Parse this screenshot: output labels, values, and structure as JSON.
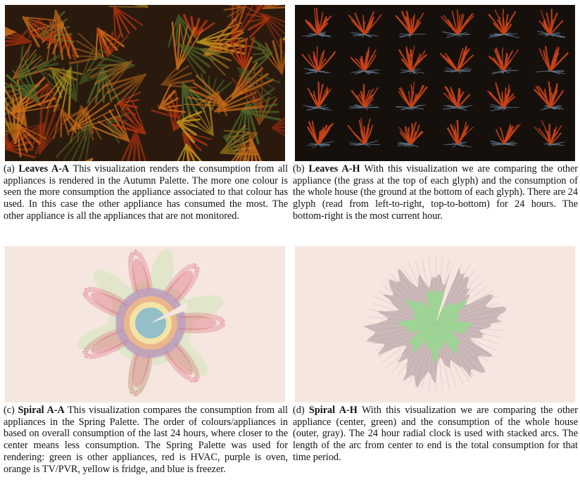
{
  "figures": [
    {
      "id": "a",
      "label": "(a)",
      "title": "Leaves A-A",
      "text": "This visualization renders the consumption from all appliances is rendered in the Autumn Palette. The more one colour is seen the more consumption the appliance associated to that colour has used. In this case the other appliance has consumed the most. The other appliance is all the appliances that are not monitored."
    },
    {
      "id": "b",
      "label": "(b)",
      "title": "Leaves A-H",
      "text": "With this visualization we are comparing the other appliance (the grass at the top of each glyph) and the consumption of the whole house (the ground at the bottom of each glyph). There are 24 glyph (read from left-to-right, top-to-bottom) for 24 hours. The bottom-right is the most current hour."
    },
    {
      "id": "c",
      "label": "(c)",
      "title": "Spiral A-A",
      "text": "This visualization compares the consumption from all appliances in the Spring Palette. The order of colours/appliances in based on overall consumption of the last 24 hours, where closer to the center means less consumption. The Spring Palette was used for rendering: green is other appliances, red is HVAC, purple is oven, orange is TV/PVR, yellow is fridge, and blue is freezer."
    },
    {
      "id": "d",
      "label": "(d)",
      "title": "Spiral A-H",
      "text": "With this visualization we are comparing the other appliance (center, green) and the consumption of the whole house (outer, gray). The 24 hour radial clock is used with stacked arcs. The length of the arc from center to end is the total consumption for that time period."
    }
  ],
  "colors": {
    "autumn_bg": "#2a1a0e",
    "autumn_red": "#b8330f",
    "autumn_orange": "#d0701a",
    "autumn_yellow": "#c89a1c",
    "autumn_green": "#4d6a2a",
    "glyph_bg": "#16100c",
    "grass": "#c9421a",
    "ground": "#5f7b93",
    "spiral_bg": "#f5e6e0",
    "spring_green": "#dfe5c9",
    "spring_red": "#d9566a",
    "spring_purple": "#a995c9",
    "spring_orange": "#f0b887",
    "spring_yellow": "#f3e3a6",
    "spring_blue": "#94bfc8",
    "house_gray": "#9a8088",
    "other_green": "#98d890"
  }
}
